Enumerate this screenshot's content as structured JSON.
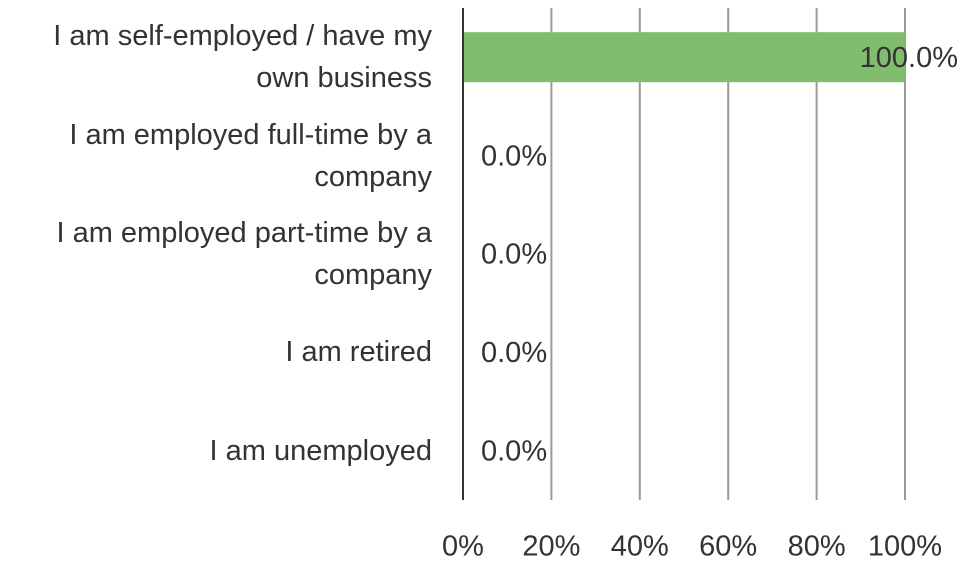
{
  "chart_data": {
    "type": "hbar",
    "categories": [
      "I am self-employed / have my own business",
      "I am employed full-time by a company",
      "I am employed part-time by a company",
      "I am retired",
      "I am unemployed"
    ],
    "values": [
      100,
      0,
      0,
      0,
      0
    ],
    "value_labels": [
      "100.0%",
      "0.0%",
      "0.0%",
      "0.0%",
      "0.0%"
    ],
    "color": "#82bc6f",
    "xlim": [
      0,
      100
    ],
    "xticks": [
      {
        "value": 0,
        "label": "0%"
      },
      {
        "value": 20,
        "label": "20%"
      },
      {
        "value": 40,
        "label": "40%"
      },
      {
        "value": 60,
        "label": "60%"
      },
      {
        "value": 80,
        "label": "80%"
      },
      {
        "value": 100,
        "label": "100%"
      }
    ],
    "grid": true
  }
}
